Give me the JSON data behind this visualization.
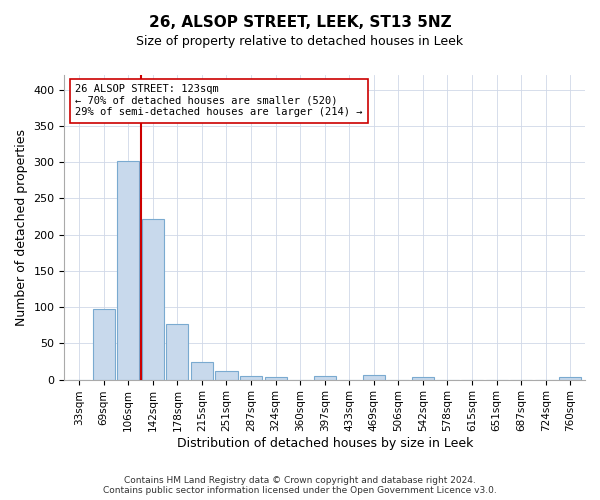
{
  "title": "26, ALSOP STREET, LEEK, ST13 5NZ",
  "subtitle": "Size of property relative to detached houses in Leek",
  "xlabel": "Distribution of detached houses by size in Leek",
  "ylabel": "Number of detached properties",
  "footer_line1": "Contains HM Land Registry data © Crown copyright and database right 2024.",
  "footer_line2": "Contains public sector information licensed under the Open Government Licence v3.0.",
  "categories": [
    "33sqm",
    "69sqm",
    "106sqm",
    "142sqm",
    "178sqm",
    "215sqm",
    "251sqm",
    "287sqm",
    "324sqm",
    "360sqm",
    "397sqm",
    "433sqm",
    "469sqm",
    "506sqm",
    "542sqm",
    "578sqm",
    "615sqm",
    "651sqm",
    "687sqm",
    "724sqm",
    "760sqm"
  ],
  "values": [
    0,
    97,
    302,
    222,
    77,
    24,
    12,
    5,
    4,
    0,
    5,
    0,
    6,
    0,
    4,
    0,
    0,
    0,
    0,
    0,
    3
  ],
  "bar_color": "#c8d9ec",
  "bar_edge_color": "#7aaad0",
  "property_line_index": 2,
  "annotation_line1": "26 ALSOP STREET: 123sqm",
  "annotation_line2": "← 70% of detached houses are smaller (520)",
  "annotation_line3": "29% of semi-detached houses are larger (214) →",
  "red_line_color": "#cc0000",
  "annotation_box_color": "#ffffff",
  "annotation_box_edge": "#cc0000",
  "ylim": [
    0,
    420
  ],
  "yticks": [
    0,
    50,
    100,
    150,
    200,
    250,
    300,
    350,
    400
  ],
  "background_color": "#ffffff",
  "grid_color": "#d0d8e8",
  "title_fontsize": 11,
  "subtitle_fontsize": 9,
  "xlabel_fontsize": 9,
  "ylabel_fontsize": 9,
  "tick_fontsize": 8,
  "xtick_fontsize": 7.5,
  "footer_fontsize": 6.5
}
